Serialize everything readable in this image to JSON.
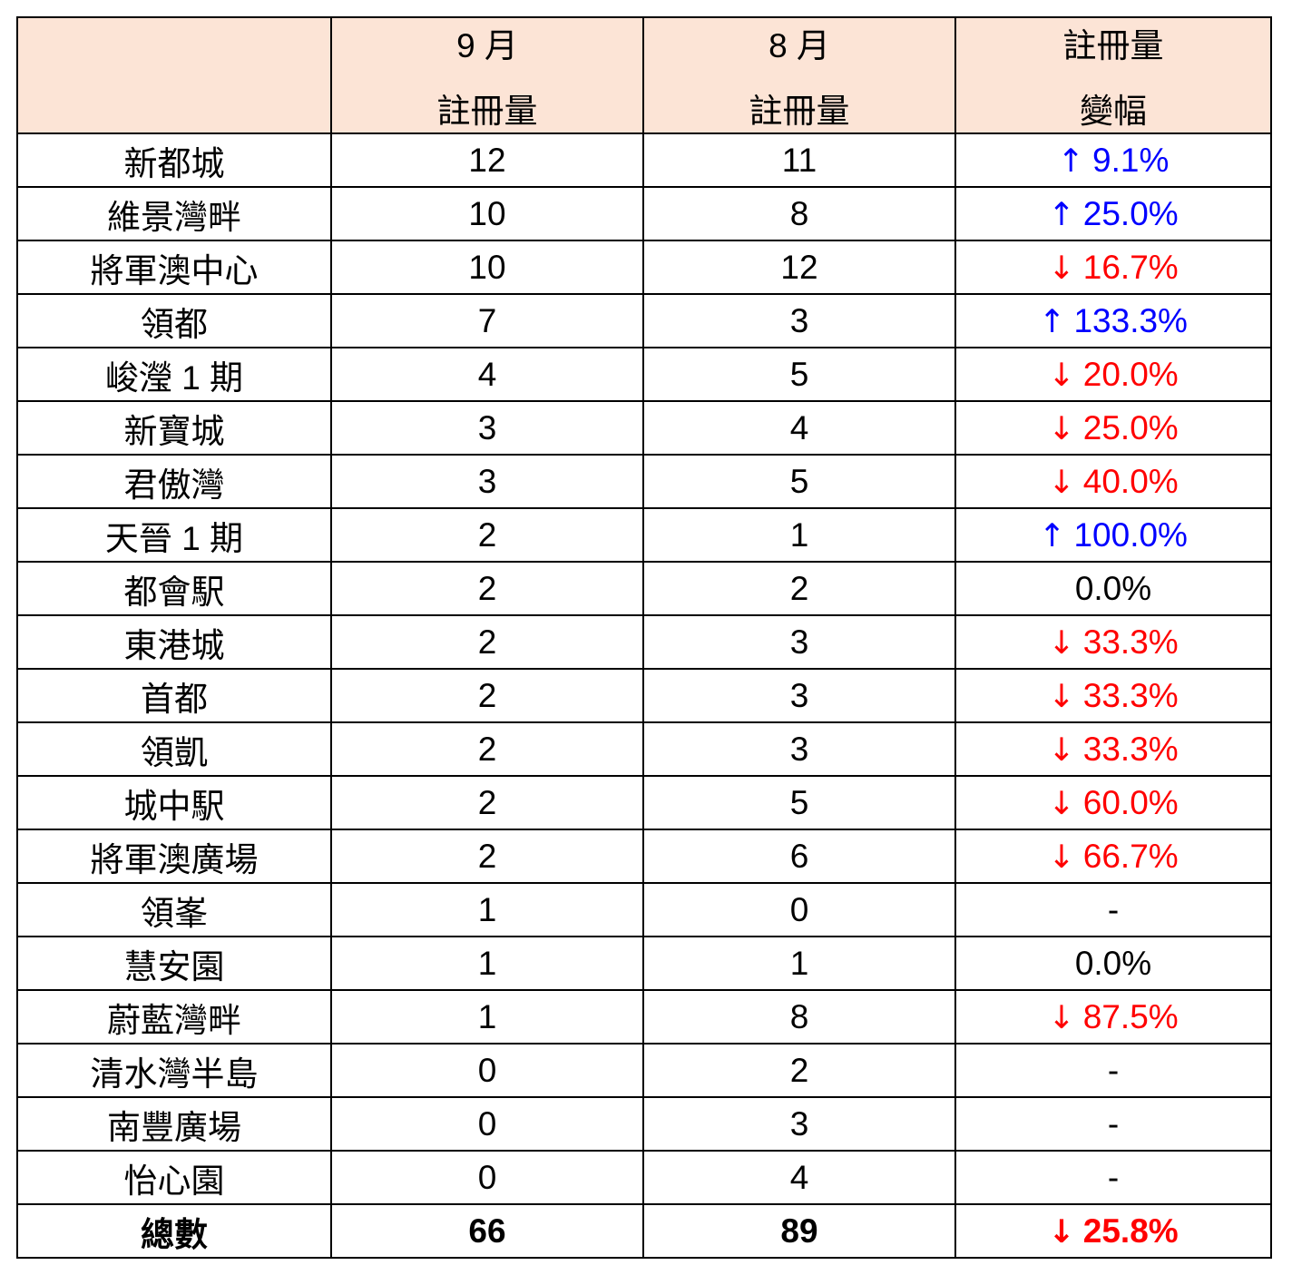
{
  "chart_data": {
    "type": "table",
    "columns": [
      "",
      "9 月 註冊量",
      "8 月 註冊量",
      "註冊量 變幅"
    ],
    "header": {
      "name_col": "",
      "col_sep": {
        "line1": "9 月",
        "line2": "註冊量"
      },
      "col_aug": {
        "line1": "8 月",
        "line2": "註冊量"
      },
      "col_change": {
        "line1": "註冊量",
        "line2": "變幅"
      }
    },
    "rows": [
      {
        "name": "新都城",
        "sep": "12",
        "aug": "11",
        "trend": "up",
        "arrow": "↑",
        "change": "9.1%"
      },
      {
        "name": "維景灣畔",
        "sep": "10",
        "aug": "8",
        "trend": "up",
        "arrow": "↑",
        "change": "25.0%"
      },
      {
        "name": "將軍澳中心",
        "sep": "10",
        "aug": "12",
        "trend": "down",
        "arrow": "↓",
        "change": "16.7%"
      },
      {
        "name": "領都",
        "sep": "7",
        "aug": "3",
        "trend": "up",
        "arrow": "↑",
        "change": "133.3%"
      },
      {
        "name": "峻瀅 1 期",
        "sep": "4",
        "aug": "5",
        "trend": "down",
        "arrow": "↓",
        "change": "20.0%"
      },
      {
        "name": "新寶城",
        "sep": "3",
        "aug": "4",
        "trend": "down",
        "arrow": "↓",
        "change": "25.0%"
      },
      {
        "name": "君傲灣",
        "sep": "3",
        "aug": "5",
        "trend": "down",
        "arrow": "↓",
        "change": "40.0%"
      },
      {
        "name": "天晉 1 期",
        "sep": "2",
        "aug": "1",
        "trend": "up",
        "arrow": "↑",
        "change": "100.0%"
      },
      {
        "name": "都會駅",
        "sep": "2",
        "aug": "2",
        "trend": "flat",
        "arrow": "",
        "change": "0.0%"
      },
      {
        "name": "東港城",
        "sep": "2",
        "aug": "3",
        "trend": "down",
        "arrow": "↓",
        "change": "33.3%"
      },
      {
        "name": "首都",
        "sep": "2",
        "aug": "3",
        "trend": "down",
        "arrow": "↓",
        "change": "33.3%"
      },
      {
        "name": "領凱",
        "sep": "2",
        "aug": "3",
        "trend": "down",
        "arrow": "↓",
        "change": "33.3%"
      },
      {
        "name": "城中駅",
        "sep": "2",
        "aug": "5",
        "trend": "down",
        "arrow": "↓",
        "change": "60.0%"
      },
      {
        "name": "將軍澳廣場",
        "sep": "2",
        "aug": "6",
        "trend": "down",
        "arrow": "↓",
        "change": "66.7%"
      },
      {
        "name": "領峯",
        "sep": "1",
        "aug": "0",
        "trend": "na",
        "arrow": "",
        "change": "-"
      },
      {
        "name": "慧安園",
        "sep": "1",
        "aug": "1",
        "trend": "flat",
        "arrow": "",
        "change": "0.0%"
      },
      {
        "name": "蔚藍灣畔",
        "sep": "1",
        "aug": "8",
        "trend": "down",
        "arrow": "↓",
        "change": "87.5%"
      },
      {
        "name": "清水灣半島",
        "sep": "0",
        "aug": "2",
        "trend": "na",
        "arrow": "",
        "change": "-"
      },
      {
        "name": "南豐廣場",
        "sep": "0",
        "aug": "3",
        "trend": "na",
        "arrow": "",
        "change": "-"
      },
      {
        "name": "怡心園",
        "sep": "0",
        "aug": "4",
        "trend": "na",
        "arrow": "",
        "change": "-"
      }
    ],
    "total": {
      "name": "總數",
      "sep": "66",
      "aug": "89",
      "trend": "down",
      "arrow": "↓",
      "change": "25.8%"
    }
  },
  "colors": {
    "header_bg": "#FCE4D6",
    "border": "#000000",
    "up": "#0000FF",
    "down": "#FF0000",
    "neutral": "#000000"
  },
  "icons": {
    "up_arrow": "↑",
    "down_arrow": "↓"
  }
}
